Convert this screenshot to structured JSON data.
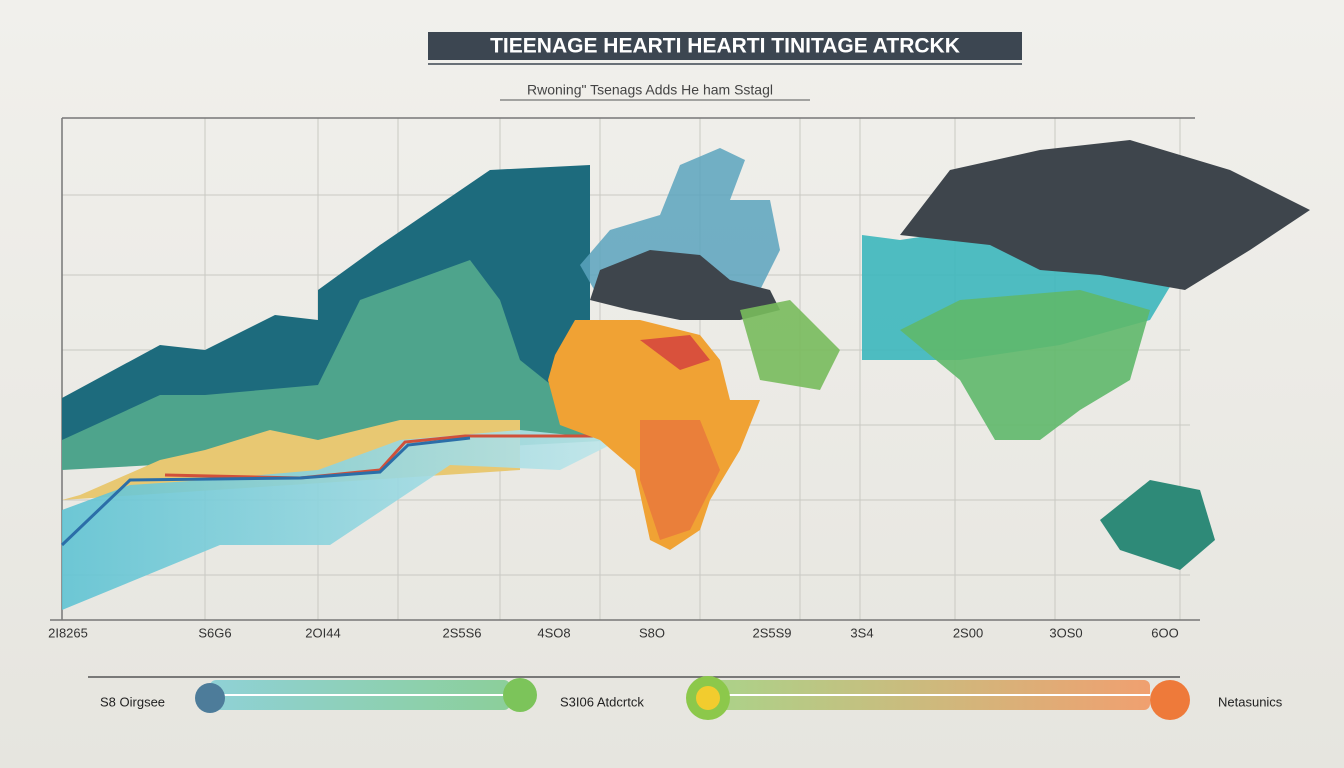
{
  "header": {
    "title": "TIEENAGE HEARTI  HEARTI TINITAGE ATRCKK",
    "subtitle": "Rwoning\" Tsenags Adds He ham Sstagl"
  },
  "axis_labels": [
    "2I8265",
    "S6G6",
    "2OI44",
    "2S5S6",
    "4SO8",
    "S8O",
    "2S5S9",
    "3S4",
    "2S00",
    "3OS0",
    "6OO"
  ],
  "legend": [
    "S8 Oirgsee",
    "S3I06 Atdcrtck",
    "Netasunics"
  ]
}
